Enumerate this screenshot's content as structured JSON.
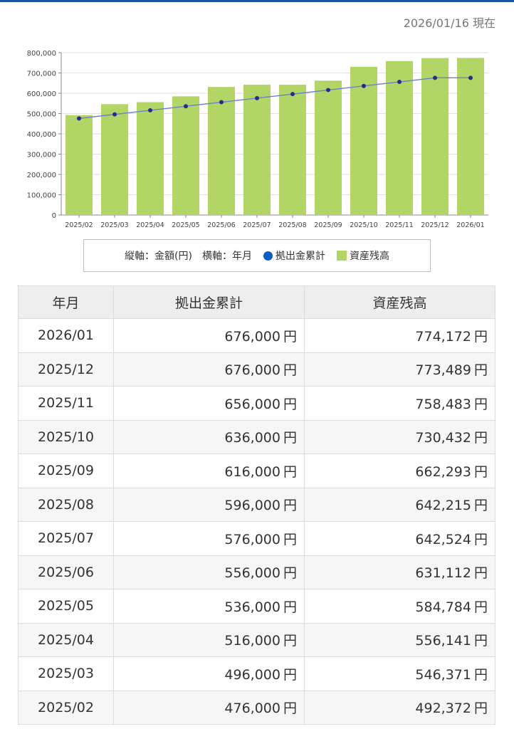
{
  "header": {
    "as_of": "2026/01/16 現在"
  },
  "chart_data": {
    "type": "bar+line",
    "categories": [
      "2025/02",
      "2025/03",
      "2025/04",
      "2025/05",
      "2025/06",
      "2025/07",
      "2025/08",
      "2025/09",
      "2025/10",
      "2025/11",
      "2025/12",
      "2026/01"
    ],
    "series": [
      {
        "name": "資産残高",
        "type": "bar",
        "color": "#b2d566",
        "values": [
          492372,
          546371,
          556141,
          584784,
          631112,
          642524,
          642215,
          662293,
          730432,
          758483,
          773489,
          774172
        ]
      },
      {
        "name": "拠出金累計",
        "type": "line",
        "color": "#0a5dc2",
        "values": [
          476000,
          496000,
          516000,
          536000,
          556000,
          576000,
          596000,
          616000,
          636000,
          656000,
          676000,
          676000
        ]
      }
    ],
    "ylim": [
      0,
      800000
    ],
    "yticks": [
      0,
      100000,
      200000,
      300000,
      400000,
      500000,
      600000,
      700000,
      800000
    ],
    "ytick_labels": [
      "0",
      "100,000",
      "200,000",
      "300,000",
      "400,000",
      "500,000",
      "600,000",
      "700,000",
      "800,000"
    ],
    "grid": true
  },
  "legend": {
    "axis_note": "縦軸：金額(円)　横軸：年月",
    "line_label": "拠出金累計",
    "bar_label": "資産残高"
  },
  "table": {
    "headers": [
      "年月",
      "拠出金累計",
      "資産残高"
    ],
    "unit": "円",
    "rows": [
      [
        "2026/01",
        "676,000",
        "774,172"
      ],
      [
        "2025/12",
        "676,000",
        "773,489"
      ],
      [
        "2025/11",
        "656,000",
        "758,483"
      ],
      [
        "2025/10",
        "636,000",
        "730,432"
      ],
      [
        "2025/09",
        "616,000",
        "662,293"
      ],
      [
        "2025/08",
        "596,000",
        "642,215"
      ],
      [
        "2025/07",
        "576,000",
        "642,524"
      ],
      [
        "2025/06",
        "556,000",
        "631,112"
      ],
      [
        "2025/05",
        "536,000",
        "584,784"
      ],
      [
        "2025/04",
        "516,000",
        "556,141"
      ],
      [
        "2025/03",
        "496,000",
        "546,371"
      ],
      [
        "2025/02",
        "476,000",
        "492,372"
      ]
    ]
  }
}
